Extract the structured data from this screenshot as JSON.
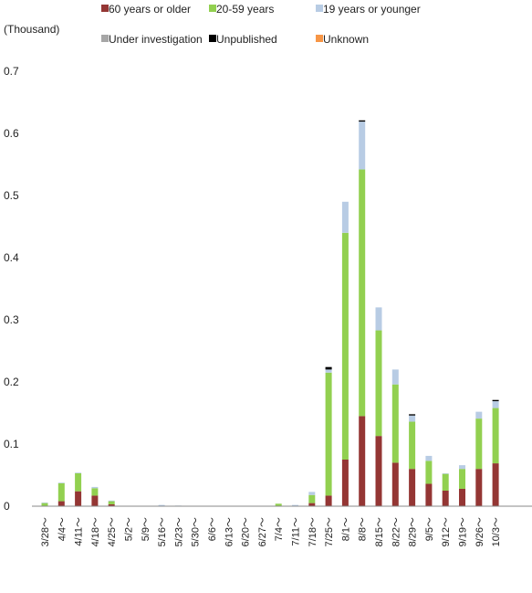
{
  "chart_data": {
    "type": "bar",
    "stacked": true,
    "unit_label": "(Thousand)",
    "ylim": [
      0,
      0.7
    ],
    "y_ticks": [
      "0",
      "0.1",
      "0.2",
      "0.3",
      "0.4",
      "0.5",
      "0.6",
      "0.7"
    ],
    "categories": [
      "3/28～",
      "4/4～",
      "4/11～",
      "4/18～",
      "4/25～",
      "5/2～",
      "5/9～",
      "5/16～",
      "5/23～",
      "5/30～",
      "6/6～",
      "6/13～",
      "6/20～",
      "6/27～",
      "7/4～",
      "7/11～",
      "7/18～",
      "7/25～",
      "8/1～",
      "8/8～",
      "8/15～",
      "8/22～",
      "8/29～",
      "9/5～",
      "9/12～",
      "9/19～",
      "9/26～",
      "10/3～"
    ],
    "series": [
      {
        "name": "60 years or older",
        "color": "#943634",
        "values": [
          0,
          0.008,
          0.024,
          0.017,
          0.003,
          0,
          0,
          0,
          0,
          0,
          0,
          0,
          0,
          0,
          0,
          0,
          0.005,
          0.017,
          0.075,
          0.145,
          0.113,
          0.07,
          0.06,
          0.036,
          0.025,
          0.028,
          0.06,
          0.069
        ]
      },
      {
        "name": "20-59 years",
        "color": "#92d050",
        "values": [
          0.005,
          0.029,
          0.029,
          0.012,
          0.005,
          0,
          0,
          0,
          0,
          0,
          0,
          0,
          0,
          0,
          0.004,
          0,
          0.013,
          0.198,
          0.365,
          0.397,
          0.17,
          0.126,
          0.076,
          0.037,
          0.027,
          0.032,
          0.081,
          0.089
        ]
      },
      {
        "name": "19 years or younger",
        "color": "#b8cce4",
        "values": [
          0.001,
          0.001,
          0.001,
          0.002,
          0.001,
          0,
          0,
          0.002,
          0.001,
          0,
          0,
          0,
          0,
          0,
          0,
          0.002,
          0.005,
          0.005,
          0.05,
          0.077,
          0.037,
          0.024,
          0.01,
          0.008,
          0.001,
          0.006,
          0.011,
          0.011
        ]
      },
      {
        "name": "Under investigation",
        "color": "#a6a6a6",
        "values": [
          0,
          0,
          0,
          0,
          0,
          0,
          0,
          0,
          0,
          0,
          0,
          0,
          0,
          0,
          0,
          0,
          0,
          0,
          0,
          0,
          0,
          0,
          0,
          0,
          0,
          0,
          0,
          0
        ]
      },
      {
        "name": "Unpublished",
        "color": "#000000",
        "values": [
          0,
          0,
          0,
          0,
          0,
          0,
          0,
          0,
          0,
          0,
          0,
          0,
          0,
          0,
          0,
          0,
          0,
          0.004,
          0,
          0.002,
          0,
          0,
          0.002,
          0,
          0,
          0,
          0,
          0.002
        ]
      },
      {
        "name": "Unknown",
        "color": "#f79646",
        "values": [
          0,
          0,
          0,
          0,
          0,
          0,
          0,
          0,
          0,
          0,
          0,
          0,
          0,
          0,
          0,
          0,
          0,
          0,
          0,
          0,
          0,
          0,
          0,
          0,
          0,
          0,
          0,
          0
        ]
      }
    ],
    "grid": false
  }
}
